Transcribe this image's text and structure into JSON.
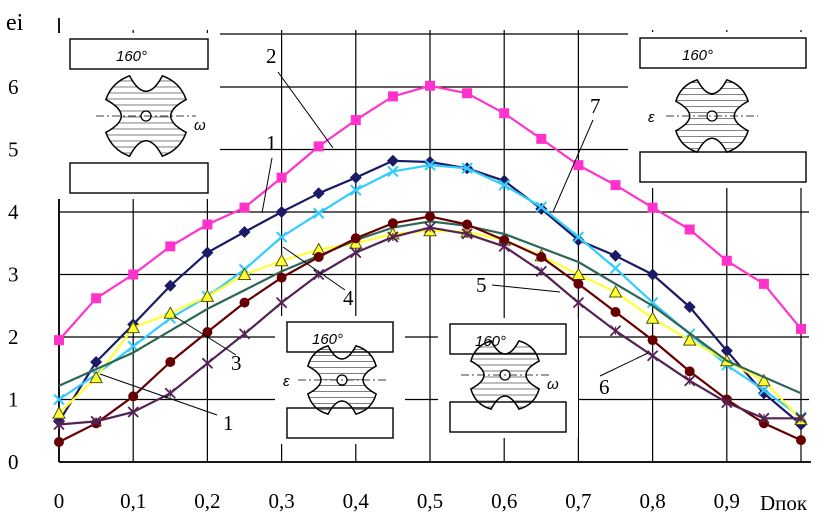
{
  "chart_data": {
    "type": "line",
    "title": "",
    "ylabel": "ei",
    "xlabel": "Dпок",
    "xlim": [
      0,
      1
    ],
    "ylim": [
      0,
      6.8
    ],
    "grid": true,
    "x_ticks": [
      "0",
      "0,1",
      "0,2",
      "0,3",
      "0,4",
      "0,5",
      "0,6",
      "0,7",
      "0,8",
      "0,9"
    ],
    "y_ticks": [
      "0",
      "1",
      "2",
      "3",
      "4",
      "5",
      "6"
    ],
    "series": [
      {
        "label": "2",
        "color": "#ff33cc",
        "marker": "square",
        "x": [
          0,
          0.05,
          0.1,
          0.15,
          0.2,
          0.25,
          0.3,
          0.35,
          0.4,
          0.45,
          0.5,
          0.55,
          0.6,
          0.65,
          0.7,
          0.75,
          0.8,
          0.85,
          0.9,
          0.95,
          1.0
        ],
        "y": [
          1.95,
          2.62,
          3.0,
          3.45,
          3.8,
          4.07,
          4.55,
          5.05,
          5.47,
          5.85,
          6.02,
          5.9,
          5.58,
          5.17,
          4.75,
          4.43,
          4.07,
          3.72,
          3.22,
          2.85,
          2.13
        ]
      },
      {
        "label": "1",
        "color": "#1a1a66",
        "marker": "diamond",
        "x": [
          0,
          0.05,
          0.1,
          0.15,
          0.2,
          0.25,
          0.3,
          0.35,
          0.4,
          0.45,
          0.5,
          0.55,
          0.6,
          0.65,
          0.7,
          0.75,
          0.8,
          0.85,
          0.9,
          0.95,
          1.0
        ],
        "y": [
          0.65,
          1.6,
          2.2,
          2.82,
          3.35,
          3.68,
          4.0,
          4.3,
          4.55,
          4.82,
          4.8,
          4.7,
          4.5,
          4.05,
          3.55,
          3.3,
          3.0,
          2.48,
          1.78,
          1.1,
          0.6
        ]
      },
      {
        "label": "1",
        "color": "#33ccff",
        "marker": "x",
        "x": [
          0,
          0.05,
          0.1,
          0.15,
          0.2,
          0.25,
          0.3,
          0.35,
          0.4,
          0.45,
          0.5,
          0.55,
          0.6,
          0.65,
          0.7,
          0.75,
          0.8,
          0.85,
          0.9,
          0.95,
          1.0
        ],
        "y": [
          1.0,
          1.4,
          1.85,
          2.3,
          2.65,
          3.08,
          3.6,
          3.98,
          4.35,
          4.65,
          4.75,
          4.7,
          4.43,
          4.08,
          3.6,
          3.1,
          2.55,
          2.05,
          1.55,
          1.15,
          0.72
        ]
      },
      {
        "label": "3",
        "color": "#ffff33",
        "marker": "triangle",
        "x": [
          0,
          0.05,
          0.1,
          0.15,
          0.2,
          0.25,
          0.3,
          0.35,
          0.4,
          0.45,
          0.5,
          0.55,
          0.6,
          0.65,
          0.7,
          0.75,
          0.8,
          0.85,
          0.9,
          0.95,
          1.0
        ],
        "y": [
          0.78,
          1.35,
          2.15,
          2.38,
          2.65,
          3.0,
          3.22,
          3.4,
          3.5,
          3.65,
          3.7,
          3.68,
          3.55,
          3.3,
          3.0,
          2.72,
          2.3,
          1.95,
          1.62,
          1.3,
          0.68
        ]
      },
      {
        "label": "7",
        "color": "#2e6655",
        "marker": "none",
        "x": [
          0,
          0.1,
          0.2,
          0.3,
          0.4,
          0.45,
          0.5,
          0.55,
          0.6,
          0.7,
          0.8,
          0.9,
          1.0
        ],
        "y": [
          1.22,
          1.75,
          2.45,
          3.05,
          3.55,
          3.75,
          3.85,
          3.78,
          3.65,
          3.2,
          2.5,
          1.62,
          1.1
        ]
      },
      {
        "label": "5",
        "color": "#660000",
        "marker": "circle",
        "x": [
          0,
          0.05,
          0.1,
          0.15,
          0.2,
          0.25,
          0.3,
          0.35,
          0.4,
          0.45,
          0.5,
          0.55,
          0.6,
          0.65,
          0.7,
          0.75,
          0.8,
          0.85,
          0.9,
          0.95,
          1.0
        ],
        "y": [
          0.32,
          0.62,
          1.05,
          1.6,
          2.08,
          2.55,
          2.95,
          3.28,
          3.58,
          3.82,
          3.93,
          3.8,
          3.55,
          3.28,
          2.85,
          2.4,
          1.95,
          1.45,
          1.0,
          0.62,
          0.35
        ]
      },
      {
        "label": "6",
        "color": "#552255",
        "marker": "star",
        "x": [
          0,
          0.05,
          0.1,
          0.15,
          0.2,
          0.25,
          0.3,
          0.35,
          0.4,
          0.45,
          0.5,
          0.55,
          0.6,
          0.65,
          0.7,
          0.75,
          0.8,
          0.85,
          0.9,
          0.95,
          1.0
        ],
        "y": [
          0.6,
          0.65,
          0.8,
          1.1,
          1.58,
          2.05,
          2.55,
          3.0,
          3.35,
          3.6,
          3.75,
          3.65,
          3.45,
          3.05,
          2.55,
          2.1,
          1.7,
          1.3,
          0.95,
          0.7,
          0.7
        ]
      }
    ],
    "annotations": [
      "1",
      "2",
      "1",
      "4",
      "3",
      "5",
      "6",
      "7"
    ],
    "inset_label": "160°",
    "inset_symbol": "ε",
    "inset_symbol_alt": "ω"
  }
}
